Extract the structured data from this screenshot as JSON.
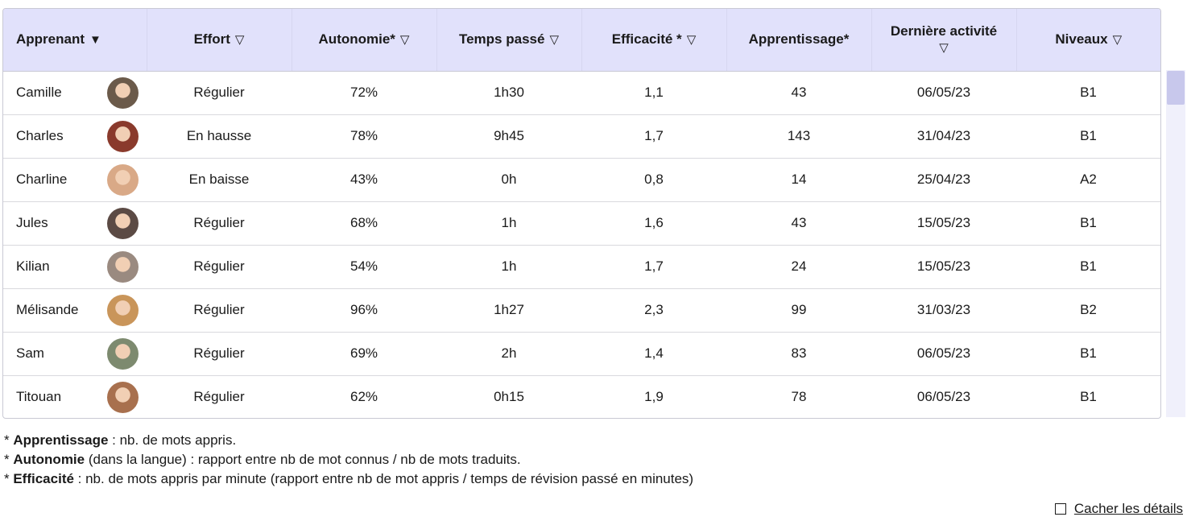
{
  "table": {
    "headers": [
      {
        "label": "Apprenant",
        "arrow": "▼"
      },
      {
        "label": "Effort",
        "arrow": "▽"
      },
      {
        "label": "Autonomie*",
        "arrow": "▽"
      },
      {
        "label": "Temps passé",
        "arrow": "▽"
      },
      {
        "label": "Efficacité *",
        "arrow": "▽"
      },
      {
        "label": "Apprentissage*",
        "arrow": ""
      },
      {
        "label": "Dernière activité",
        "arrow": "▽"
      },
      {
        "label": "Niveaux",
        "arrow": "▽"
      }
    ],
    "rows": [
      {
        "name": "Camille",
        "avatar_color": "#6b5a4a",
        "effort": "Régulier",
        "autonomie": "72%",
        "temps": "1h30",
        "efficacite": "1,1",
        "apprentissage": "43",
        "derniere": "06/05/23",
        "niveau": "B1"
      },
      {
        "name": "Charles",
        "avatar_color": "#8a3a2c",
        "effort": "En hausse",
        "autonomie": "78%",
        "temps": "9h45",
        "efficacite": "1,7",
        "apprentissage": "143",
        "derniere": "31/04/23",
        "niveau": "B1"
      },
      {
        "name": "Charline",
        "avatar_color": "#d9a987",
        "effort": "En baisse",
        "autonomie": "43%",
        "temps": "0h",
        "efficacite": "0,8",
        "apprentissage": "14",
        "derniere": "25/04/23",
        "niveau": "A2"
      },
      {
        "name": "Jules",
        "avatar_color": "#5b4a44",
        "effort": "Régulier",
        "autonomie": "68%",
        "temps": "1h",
        "efficacite": "1,6",
        "apprentissage": "43",
        "derniere": "15/05/23",
        "niveau": "B1"
      },
      {
        "name": "Kilian",
        "avatar_color": "#9a8a80",
        "effort": "Régulier",
        "autonomie": "54%",
        "temps": "1h",
        "efficacite": "1,7",
        "apprentissage": "24",
        "derniere": "15/05/23",
        "niveau": "B1"
      },
      {
        "name": "Mélisande",
        "avatar_color": "#c9955a",
        "effort": "Régulier",
        "autonomie": "96%",
        "temps": "1h27",
        "efficacite": "2,3",
        "apprentissage": "99",
        "derniere": "31/03/23",
        "niveau": "B2"
      },
      {
        "name": "Sam",
        "avatar_color": "#7d8a6f",
        "effort": "Régulier",
        "autonomie": "69%",
        "temps": "2h",
        "efficacite": "1,4",
        "apprentissage": "83",
        "derniere": "06/05/23",
        "niveau": "B1"
      },
      {
        "name": "Titouan",
        "avatar_color": "#a8704e",
        "effort": "Régulier",
        "autonomie": "62%",
        "temps": "0h15",
        "efficacite": "1,9",
        "apprentissage": "78",
        "derniere": "06/05/23",
        "niveau": "B1"
      }
    ]
  },
  "notes": [
    {
      "prefix": "* ",
      "term": "Apprentissage",
      "text": " : nb. de mots appris."
    },
    {
      "prefix": "* ",
      "term": "Autonomie",
      "text": " (dans la langue) : rapport entre nb de mot connus / nb de mots traduits."
    },
    {
      "prefix": "* ",
      "term": "Efficacité",
      "text": " : nb. de mots appris par minute (rapport entre nb de mot appris / temps de révision passé en minutes)"
    }
  ],
  "hide_details": {
    "label": "Cacher les détails"
  }
}
